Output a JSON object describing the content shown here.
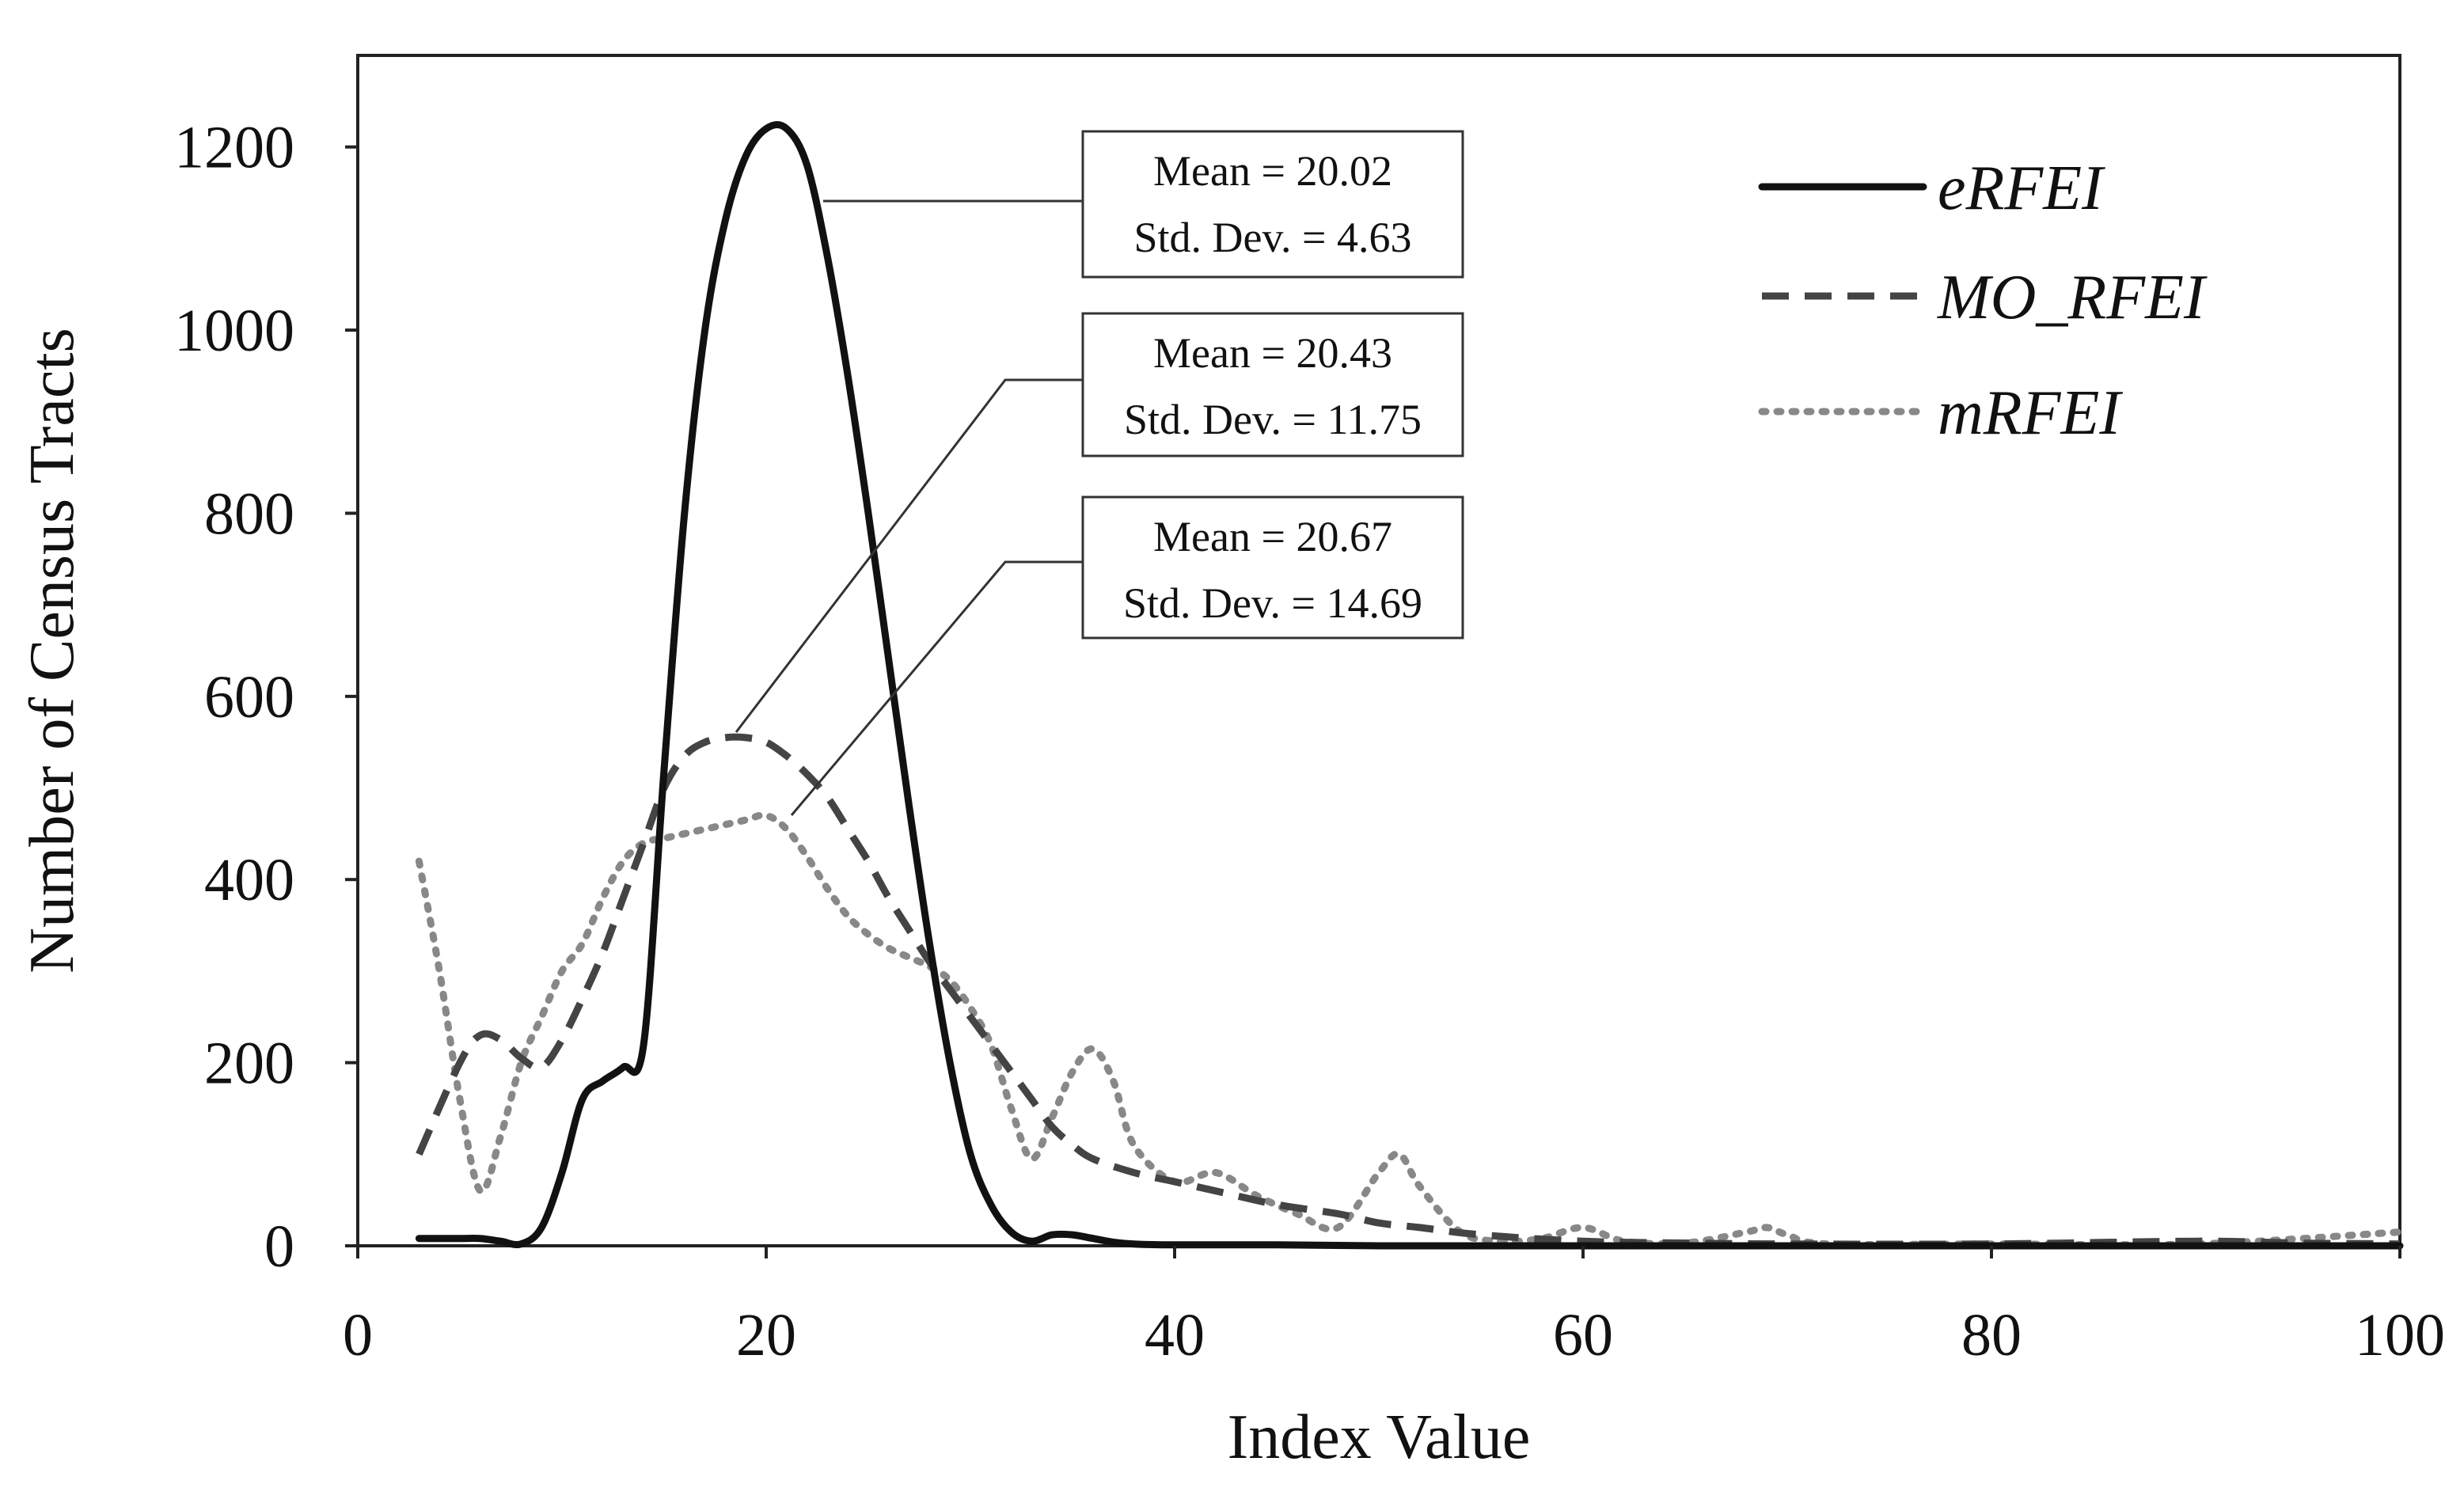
{
  "chart_data": {
    "type": "line",
    "title": "",
    "xlabel": "Index Value",
    "ylabel": "Number of Census Tracts",
    "xlim": [
      0,
      100
    ],
    "ylim": [
      0,
      1300
    ],
    "xticks": [
      0,
      20,
      40,
      60,
      80,
      100
    ],
    "yticks": [
      0,
      200,
      400,
      600,
      800,
      1000,
      1200
    ],
    "grid": false,
    "legend_position": "top-right",
    "series": [
      {
        "name": "eRFEI",
        "style": "solid",
        "color": "#111111",
        "x": [
          3,
          5,
          6,
          7,
          8,
          9,
          10,
          11,
          12,
          13,
          14,
          15,
          16,
          17,
          18,
          19,
          20,
          21,
          22,
          23,
          24,
          25,
          26,
          27,
          28,
          29,
          30,
          31,
          32,
          33,
          34,
          35,
          36,
          37,
          38,
          40,
          45,
          50,
          60,
          70,
          80,
          90,
          100
        ],
        "y": [
          8,
          8,
          8,
          5,
          2,
          20,
          80,
          160,
          180,
          195,
          220,
          520,
          800,
          1000,
          1120,
          1190,
          1220,
          1220,
          1180,
          1080,
          950,
          800,
          640,
          480,
          330,
          200,
          100,
          45,
          15,
          5,
          12,
          12,
          8,
          4,
          2,
          1,
          1,
          0,
          0,
          0,
          0,
          0,
          0
        ]
      },
      {
        "name": "MO_RFEI",
        "style": "dashed",
        "color": "#444444",
        "x": [
          3,
          5,
          6,
          7,
          8,
          9,
          10,
          11,
          12,
          13,
          14,
          15,
          16,
          17,
          18,
          19,
          20,
          21,
          22,
          23,
          24,
          25,
          26,
          27,
          28,
          29,
          30,
          31,
          32,
          33,
          34,
          35,
          36,
          38,
          40,
          42,
          45,
          48,
          50,
          52,
          55,
          60,
          65,
          70,
          80,
          90,
          95,
          100
        ],
        "y": [
          100,
          200,
          230,
          225,
          205,
          195,
          225,
          270,
          320,
          380,
          440,
          500,
          535,
          550,
          555,
          555,
          550,
          535,
          515,
          490,
          455,
          420,
          380,
          345,
          310,
          280,
          250,
          220,
          190,
          160,
          130,
          110,
          95,
          80,
          70,
          60,
          45,
          35,
          25,
          20,
          12,
          5,
          3,
          2,
          2,
          5,
          3,
          2
        ]
      },
      {
        "name": "mRFEI",
        "style": "dotted",
        "color": "#888888",
        "x": [
          3,
          4,
          5,
          6,
          7,
          8,
          9,
          10,
          11,
          12,
          13,
          14,
          15,
          16,
          17,
          18,
          19,
          20,
          21,
          22,
          23,
          24,
          25,
          26,
          27,
          28,
          29,
          30,
          31,
          32,
          33,
          34,
          35,
          36,
          37,
          38,
          40,
          42,
          44,
          46,
          48,
          50,
          51,
          52,
          54,
          56,
          58,
          60,
          62,
          65,
          68,
          69,
          70,
          72,
          80,
          90,
          100
        ],
        "y": [
          420,
          300,
          160,
          60,
          120,
          200,
          250,
          300,
          330,
          380,
          420,
          440,
          445,
          450,
          455,
          460,
          465,
          470,
          455,
          425,
          390,
          360,
          340,
          325,
          315,
          305,
          290,
          260,
          220,
          150,
          95,
          140,
          190,
          215,
          180,
          110,
          70,
          80,
          55,
          35,
          20,
          80,
          100,
          65,
          15,
          5,
          8,
          20,
          5,
          3,
          15,
          20,
          12,
          2,
          2,
          2,
          15
        ]
      }
    ],
    "annotations": [
      {
        "series": "eRFEI",
        "line1": "Mean = 20.02",
        "line2": "Std. Dev. = 4.63"
      },
      {
        "series": "MO_RFEI",
        "line1": "Mean = 20.43",
        "line2": "Std. Dev. = 11.75"
      },
      {
        "series": "mRFEI",
        "line1": "Mean = 20.67",
        "line2": "Std. Dev. = 14.69"
      }
    ]
  }
}
